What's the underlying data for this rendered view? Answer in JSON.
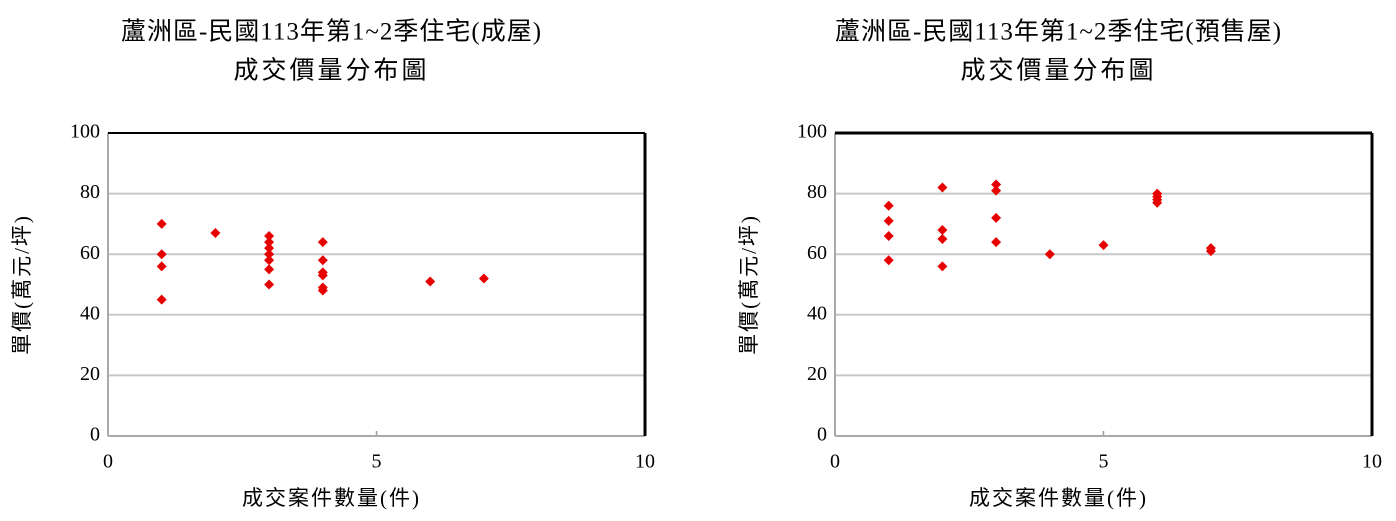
{
  "chart_data": [
    {
      "type": "scatter",
      "title": "蘆洲區-民國113年第1~2季住宅(成屋)",
      "subtitle": "成交價量分布圖",
      "x_label": "成交案件數量(件)",
      "y_label": "單價(萬元/坪)",
      "color": "#e60000",
      "x": [
        1,
        1,
        1,
        1,
        2,
        3,
        3,
        3,
        3,
        3,
        3,
        3,
        4,
        4,
        4,
        4,
        4,
        4,
        6,
        7
      ],
      "values": [
        70,
        60,
        56,
        45,
        67,
        66,
        64,
        62,
        60,
        58,
        55,
        50,
        64,
        58,
        54,
        53,
        49,
        48,
        51,
        52
      ],
      "xlim": [
        0,
        10
      ],
      "xticks": [
        0,
        5,
        10
      ],
      "ylim": [
        0,
        100
      ],
      "yticks": [
        0,
        20,
        40,
        60,
        80,
        100
      ],
      "grid": true
    },
    {
      "type": "scatter",
      "title": "蘆洲區-民國113年第1~2季住宅(預售屋)",
      "subtitle": "成交價量分布圖",
      "x_label": "成交案件數量(件)",
      "y_label": "單價(萬元/坪)",
      "color": "#e60000",
      "x": [
        1,
        1,
        1,
        1,
        2,
        2,
        2,
        2,
        3,
        3,
        3,
        3,
        4,
        5,
        6,
        6,
        6,
        6,
        7,
        7
      ],
      "values": [
        76,
        71,
        66,
        58,
        82,
        68,
        65,
        56,
        83,
        81,
        72,
        64,
        60,
        63,
        80,
        79,
        78,
        77,
        62,
        61
      ],
      "xlim": [
        0,
        10
      ],
      "xticks": [
        0,
        5,
        10
      ],
      "ylim": [
        0,
        100
      ],
      "yticks": [
        0,
        20,
        40,
        60,
        80,
        100
      ],
      "grid": true
    }
  ]
}
